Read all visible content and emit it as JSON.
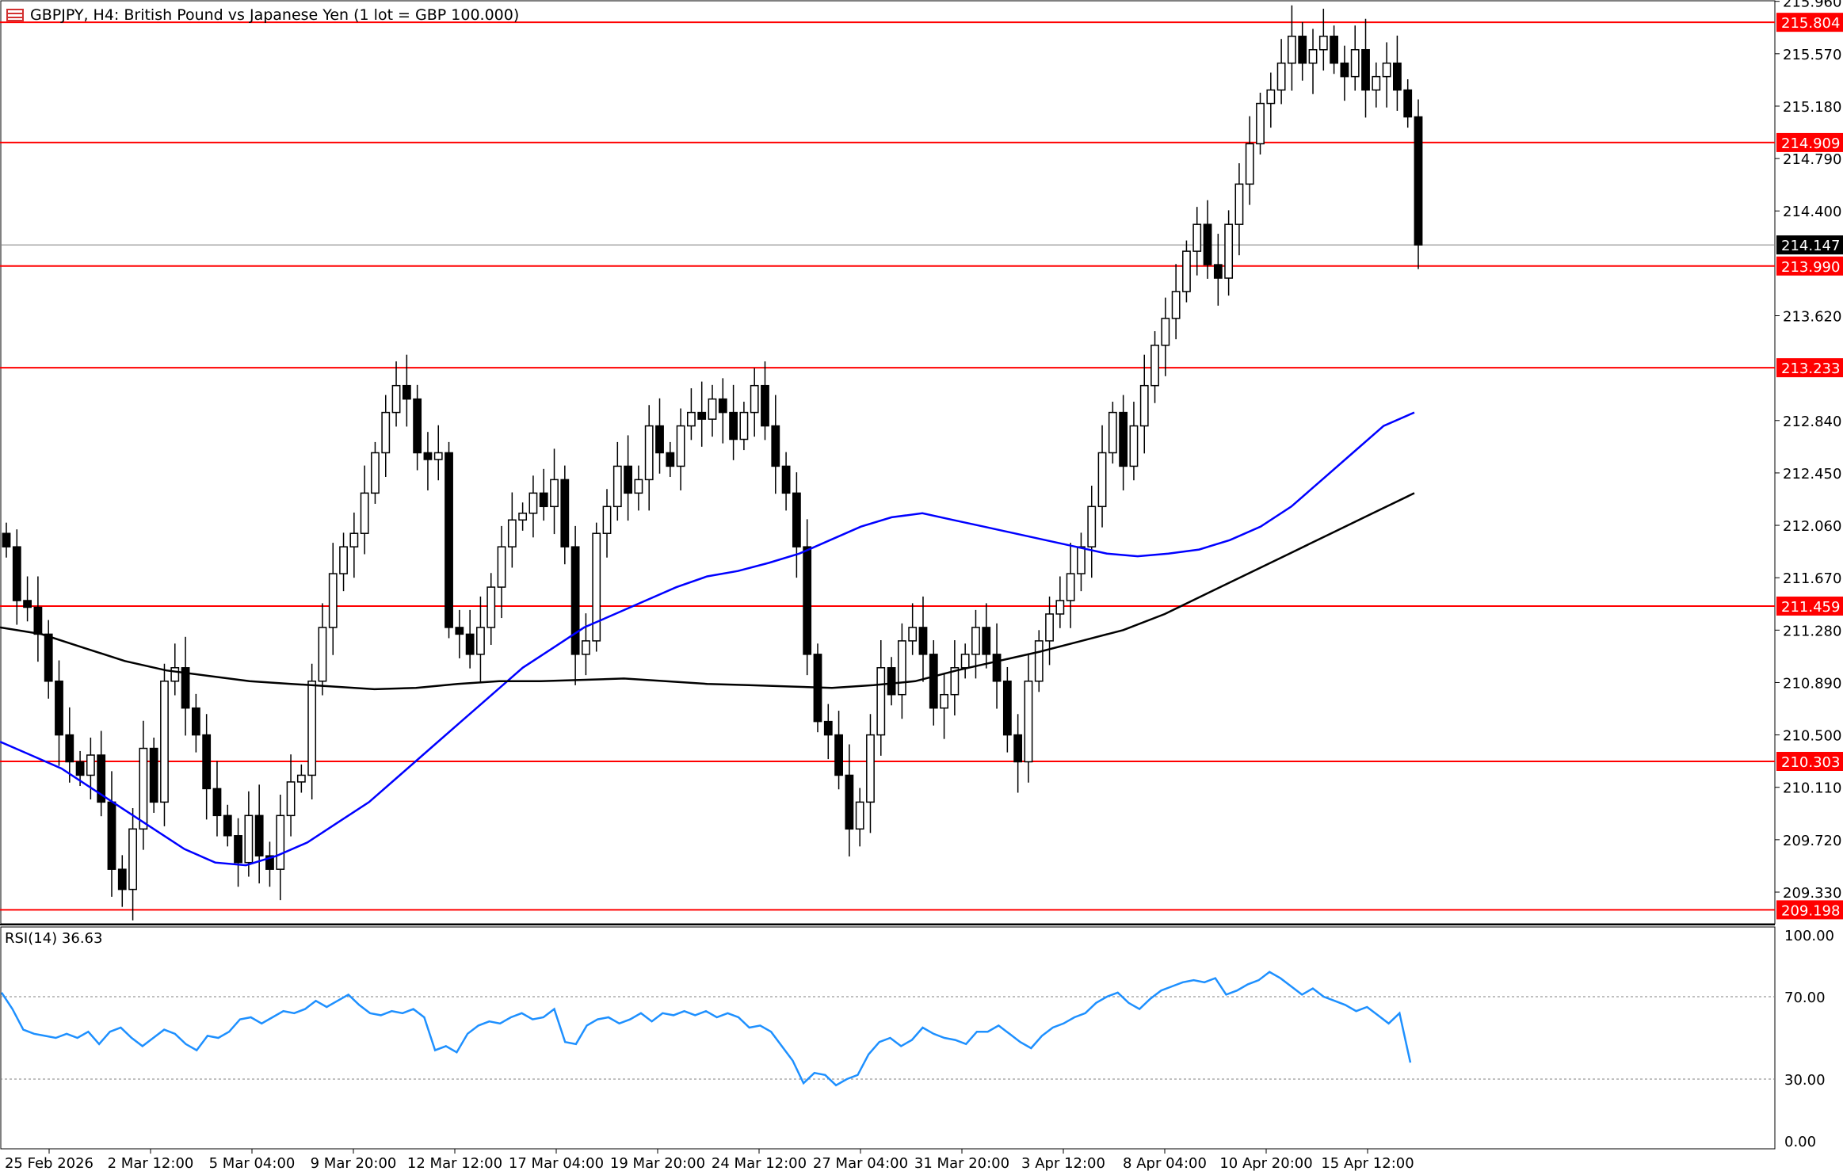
{
  "header": {
    "title": "GBPJPY, H4:  British Pound vs Japanese Yen (1 lot = GBP 100.000)",
    "icon": "chart-window-icon"
  },
  "colors": {
    "candle": "#000000",
    "level_line": "#ff0000",
    "price_label_bg": "#ff0000",
    "ma_fast": "#0000ff",
    "ma_slow": "#000000",
    "rsi": "#1e90ff",
    "current_price_bg": "#000000"
  },
  "rsi": {
    "label": "RSI(14) 36.63",
    "ticks": [
      "100.00",
      "70.00",
      "30.00",
      "0.00"
    ],
    "levels": [
      70,
      30
    ]
  },
  "price_ticks": [
    "215.960",
    "215.570",
    "215.180",
    "214.790",
    "214.400",
    "213.620",
    "212.840",
    "212.450",
    "212.060",
    "211.670",
    "211.280",
    "210.890",
    "210.500",
    "210.110",
    "209.720",
    "209.330"
  ],
  "level_labels": [
    "215.804",
    "214.909",
    "213.990",
    "213.233",
    "211.459",
    "210.303",
    "209.198"
  ],
  "current_price_label": "214.147",
  "x_labels": [
    "25 Feb 2026",
    "2 Mar 12:00",
    "5 Mar 04:00",
    "9 Mar 20:00",
    "12 Mar 12:00",
    "17 Mar 04:00",
    "19 Mar 20:00",
    "24 Mar 12:00",
    "27 Mar 04:00",
    "31 Mar 20:00",
    "3 Apr 12:00",
    "8 Apr 04:00",
    "10 Apr 20:00",
    "15 Apr 12:00"
  ],
  "chart_data": {
    "type": "candlestick",
    "symbol": "GBPJPY",
    "timeframe": "H4",
    "ylim": [
      209.1,
      215.97
    ],
    "horizontal_levels": [
      215.804,
      214.909,
      213.99,
      213.233,
      211.459,
      210.303,
      209.198
    ],
    "current_price": 214.147,
    "price_series": [
      211.9,
      211.5,
      211.45,
      211.25,
      210.9,
      210.5,
      210.3,
      210.2,
      210.35,
      210.0,
      209.5,
      209.35,
      209.8,
      210.4,
      210.0,
      210.9,
      211.0,
      210.7,
      210.5,
      210.1,
      209.9,
      209.75,
      209.55,
      209.9,
      209.6,
      209.5,
      209.9,
      210.15,
      210.2,
      210.9,
      211.3,
      211.7,
      211.9,
      212.0,
      212.3,
      212.6,
      212.9,
      213.1,
      213.0,
      212.6,
      212.55,
      212.6,
      211.3,
      211.25,
      211.1,
      211.3,
      211.6,
      211.9,
      212.1,
      212.15,
      212.3,
      212.2,
      212.4,
      211.9,
      211.1,
      211.2,
      212.0,
      212.2,
      212.5,
      212.3,
      212.4,
      212.8,
      212.6,
      212.5,
      212.8,
      212.9,
      212.85,
      213.0,
      212.9,
      212.7,
      212.9,
      213.1,
      212.8,
      212.5,
      212.3,
      211.9,
      211.1,
      210.6,
      210.5,
      210.2,
      209.8,
      210.0,
      210.5,
      211.0,
      210.8,
      211.2,
      211.3,
      211.1,
      210.7,
      210.8,
      211.0,
      211.1,
      211.3,
      211.1,
      210.9,
      210.5,
      210.3,
      210.9,
      211.2,
      211.4,
      211.5,
      211.7,
      211.9,
      212.2,
      212.6,
      212.9,
      212.5,
      212.8,
      213.1,
      213.4,
      213.6,
      213.8,
      214.1,
      214.3,
      214.0,
      213.9,
      214.3,
      214.6,
      214.9,
      215.2,
      215.3,
      215.5,
      215.7,
      215.5,
      215.6,
      215.7,
      215.5,
      215.4,
      215.6,
      215.3,
      215.4,
      215.5,
      215.3,
      215.1,
      214.147
    ],
    "ma_fast": [
      210.45,
      210.35,
      210.25,
      210.1,
      209.95,
      209.8,
      209.65,
      209.55,
      209.53,
      209.6,
      209.7,
      209.85,
      210.0,
      210.2,
      210.4,
      210.6,
      210.8,
      211.0,
      211.15,
      211.3,
      211.4,
      211.5,
      211.6,
      211.68,
      211.72,
      211.78,
      211.85,
      211.95,
      212.05,
      212.12,
      212.15,
      212.1,
      212.05,
      212.0,
      211.95,
      211.9,
      211.85,
      211.83,
      211.85,
      211.88,
      211.95,
      212.05,
      212.2,
      212.4,
      212.6,
      212.8,
      212.9
    ],
    "ma_slow": [
      211.3,
      211.25,
      211.15,
      211.05,
      210.98,
      210.94,
      210.9,
      210.88,
      210.86,
      210.84,
      210.85,
      210.88,
      210.9,
      210.9,
      210.91,
      210.92,
      210.9,
      210.88,
      210.87,
      210.86,
      210.85,
      210.87,
      210.9,
      210.98,
      211.05,
      211.12,
      211.2,
      211.28,
      211.4,
      211.55,
      211.7,
      211.85,
      212.0,
      212.15,
      212.3
    ],
    "rsi_values": [
      72,
      64,
      54,
      52,
      51,
      50,
      52,
      50,
      53,
      47,
      53,
      55,
      50,
      46,
      50,
      54,
      52,
      47,
      44,
      51,
      50,
      53,
      59,
      60,
      57,
      60,
      63,
      62,
      64,
      68,
      65,
      68,
      71,
      66,
      62,
      61,
      63,
      62,
      64,
      60,
      44,
      46,
      43,
      52,
      56,
      58,
      57,
      60,
      62,
      59,
      60,
      64,
      48,
      47,
      56,
      59,
      60,
      57,
      59,
      62,
      58,
      62,
      61,
      63,
      61,
      63,
      60,
      62,
      60,
      55,
      56,
      53,
      46,
      39,
      28,
      33,
      32,
      27,
      30,
      32,
      42,
      48,
      50,
      46,
      49,
      55,
      52,
      50,
      49,
      47,
      53,
      53,
      56,
      52,
      48,
      45,
      51,
      55,
      57,
      60,
      62,
      67,
      70,
      72,
      67,
      64,
      69,
      73,
      75,
      77,
      78,
      77,
      79,
      71,
      73,
      76,
      78,
      82,
      79,
      75,
      71,
      74,
      70,
      68,
      66,
      63,
      65,
      61,
      57,
      62,
      38
    ]
  }
}
